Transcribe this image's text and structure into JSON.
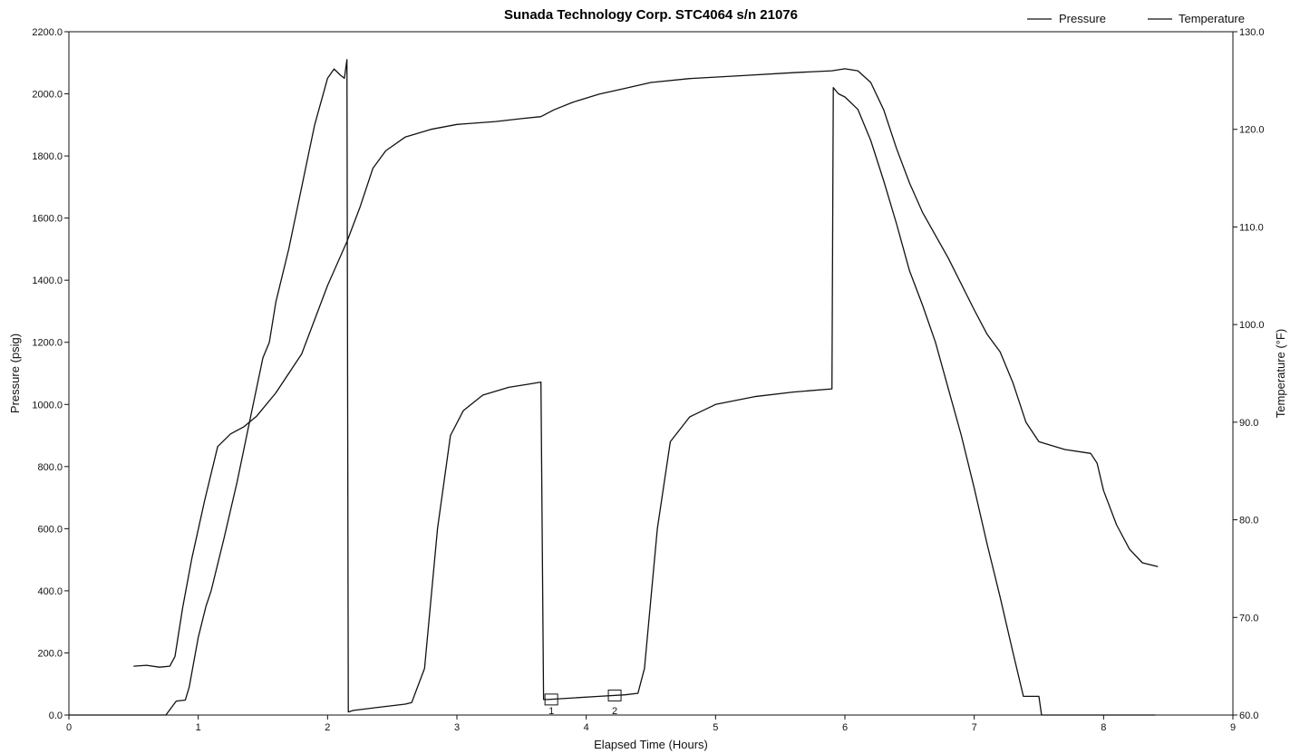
{
  "chart_data": {
    "type": "line",
    "title": "Sunada Technology Corp. STC4064 s/n 21076",
    "xlabel": "Elapsed Time (Hours)",
    "ylabel": "Pressure (psig)",
    "y2label": "Temperature (°F)",
    "xlim": [
      0,
      9
    ],
    "ylim": [
      0,
      2200
    ],
    "y2lim": [
      60,
      130
    ],
    "grid": false,
    "legend_position": "top-right",
    "x_ticks": [
      "0",
      "1",
      "2",
      "3",
      "4",
      "5",
      "6",
      "7",
      "8",
      "9"
    ],
    "y_ticks": [
      "0.0",
      "200.0",
      "400.0",
      "600.0",
      "800.0",
      "1000.0",
      "1200.0",
      "1400.0",
      "1600.0",
      "1800.0",
      "2000.0",
      "2200.0"
    ],
    "y2_ticks": [
      "60.0",
      "70.0",
      "80.0",
      "90.0",
      "100.0",
      "110.0",
      "120.0",
      "130.0"
    ],
    "markers": [
      {
        "label": "1",
        "x": 3.73,
        "y": 50
      },
      {
        "label": "2",
        "x": 4.22,
        "y": 63
      }
    ],
    "series": [
      {
        "name": "Pressure",
        "axis": "left",
        "points": [
          [
            0.0,
            0
          ],
          [
            0.75,
            0
          ],
          [
            0.83,
            45
          ],
          [
            0.9,
            48
          ],
          [
            0.93,
            90
          ],
          [
            1.0,
            250
          ],
          [
            1.06,
            350
          ],
          [
            1.1,
            400
          ],
          [
            1.2,
            570
          ],
          [
            1.3,
            750
          ],
          [
            1.4,
            950
          ],
          [
            1.5,
            1150
          ],
          [
            1.55,
            1200
          ],
          [
            1.6,
            1330
          ],
          [
            1.7,
            1500
          ],
          [
            1.8,
            1700
          ],
          [
            1.85,
            1800
          ],
          [
            1.9,
            1900
          ],
          [
            2.0,
            2050
          ],
          [
            2.05,
            2080
          ],
          [
            2.1,
            2060
          ],
          [
            2.13,
            2050
          ],
          [
            2.15,
            2110
          ],
          [
            2.16,
            10
          ],
          [
            2.2,
            15
          ],
          [
            2.4,
            25
          ],
          [
            2.6,
            35
          ],
          [
            2.65,
            40
          ],
          [
            2.75,
            150
          ],
          [
            2.85,
            600
          ],
          [
            2.95,
            900
          ],
          [
            3.05,
            980
          ],
          [
            3.2,
            1030
          ],
          [
            3.4,
            1055
          ],
          [
            3.55,
            1065
          ],
          [
            3.65,
            1072
          ],
          [
            3.67,
            50
          ],
          [
            3.7,
            50
          ],
          [
            3.9,
            55
          ],
          [
            4.1,
            60
          ],
          [
            4.3,
            65
          ],
          [
            4.4,
            70
          ],
          [
            4.45,
            150
          ],
          [
            4.55,
            600
          ],
          [
            4.65,
            880
          ],
          [
            4.8,
            960
          ],
          [
            5.0,
            1000
          ],
          [
            5.3,
            1025
          ],
          [
            5.6,
            1040
          ],
          [
            5.9,
            1050
          ],
          [
            5.91,
            2020
          ],
          [
            5.95,
            2000
          ],
          [
            6.0,
            1990
          ],
          [
            6.1,
            1950
          ],
          [
            6.2,
            1850
          ],
          [
            6.3,
            1720
          ],
          [
            6.4,
            1580
          ],
          [
            6.5,
            1430
          ],
          [
            6.6,
            1320
          ],
          [
            6.7,
            1200
          ],
          [
            6.8,
            1050
          ],
          [
            6.9,
            900
          ],
          [
            7.0,
            730
          ],
          [
            7.1,
            550
          ],
          [
            7.2,
            380
          ],
          [
            7.3,
            200
          ],
          [
            7.38,
            60
          ],
          [
            7.5,
            60
          ],
          [
            7.52,
            0
          ],
          [
            8.4,
            0
          ]
        ]
      },
      {
        "name": "Temperature",
        "axis": "right",
        "points": [
          [
            0.5,
            65.0
          ],
          [
            0.6,
            65.1
          ],
          [
            0.7,
            64.9
          ],
          [
            0.78,
            65.0
          ],
          [
            0.82,
            66.0
          ],
          [
            0.88,
            71.0
          ],
          [
            0.95,
            76.0
          ],
          [
            1.05,
            82.0
          ],
          [
            1.15,
            87.5
          ],
          [
            1.25,
            88.8
          ],
          [
            1.35,
            89.5
          ],
          [
            1.45,
            90.6
          ],
          [
            1.6,
            93.0
          ],
          [
            1.8,
            97.0
          ],
          [
            2.0,
            104.0
          ],
          [
            2.15,
            108.5
          ],
          [
            2.25,
            112.0
          ],
          [
            2.35,
            116.0
          ],
          [
            2.45,
            117.8
          ],
          [
            2.6,
            119.2
          ],
          [
            2.8,
            120.0
          ],
          [
            3.0,
            120.5
          ],
          [
            3.3,
            120.8
          ],
          [
            3.5,
            121.1
          ],
          [
            3.65,
            121.3
          ],
          [
            3.75,
            122.0
          ],
          [
            3.9,
            122.8
          ],
          [
            4.1,
            123.6
          ],
          [
            4.3,
            124.2
          ],
          [
            4.5,
            124.8
          ],
          [
            4.8,
            125.2
          ],
          [
            5.2,
            125.5
          ],
          [
            5.6,
            125.8
          ],
          [
            5.9,
            126.0
          ],
          [
            6.0,
            126.2
          ],
          [
            6.1,
            126.0
          ],
          [
            6.2,
            124.8
          ],
          [
            6.3,
            122.0
          ],
          [
            6.4,
            118.0
          ],
          [
            6.5,
            114.5
          ],
          [
            6.6,
            111.5
          ],
          [
            6.8,
            106.8
          ],
          [
            7.0,
            101.5
          ],
          [
            7.1,
            99.0
          ],
          [
            7.2,
            97.2
          ],
          [
            7.3,
            94.0
          ],
          [
            7.4,
            90.0
          ],
          [
            7.5,
            88.0
          ],
          [
            7.7,
            87.2
          ],
          [
            7.9,
            86.8
          ],
          [
            7.95,
            85.8
          ],
          [
            8.0,
            83.0
          ],
          [
            8.1,
            79.5
          ],
          [
            8.2,
            77.0
          ],
          [
            8.3,
            75.6
          ],
          [
            8.42,
            75.2
          ]
        ]
      }
    ]
  }
}
